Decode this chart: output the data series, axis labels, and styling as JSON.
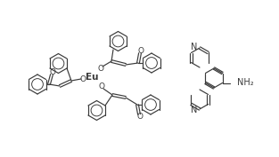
{
  "bg_color": "#ffffff",
  "line_color": "#3a3a3a",
  "line_width": 0.85,
  "figsize": [
    3.13,
    1.77
  ],
  "dpi": 100,
  "eu_label": "Eu",
  "nh2_label": "NH₂",
  "o_label": "O",
  "n_label": "N"
}
